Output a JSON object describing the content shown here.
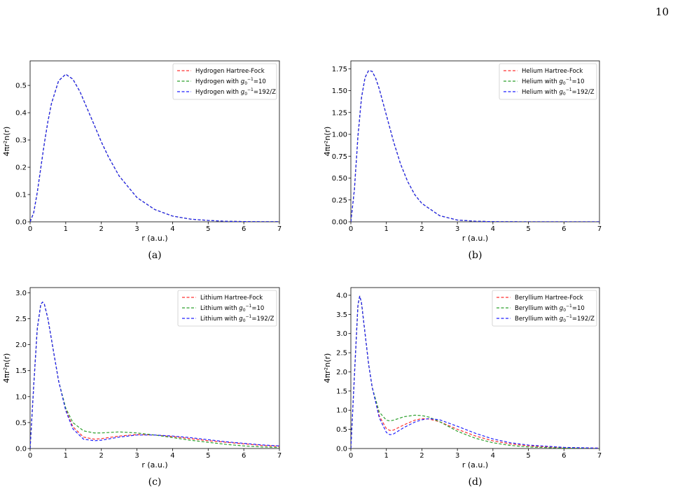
{
  "page": {
    "number": "10"
  },
  "colors": {
    "hf": "#ff3030",
    "g10": "#2ca02c",
    "g192": "#2020ff"
  },
  "chart_data": [
    {
      "type": "line",
      "caption": "(a)",
      "xlabel": "r (a.u.)",
      "ylabel": "4πr²n(r)",
      "xlim": [
        0,
        7
      ],
      "ylim": [
        0,
        0.59
      ],
      "xticks": [
        0,
        1,
        2,
        3,
        4,
        5,
        6,
        7
      ],
      "yticks": [
        0.0,
        0.1,
        0.2,
        0.3,
        0.4,
        0.5
      ],
      "ytick_labels": [
        "0.0",
        "0.1",
        "0.2",
        "0.3",
        "0.4",
        "0.5"
      ],
      "legend_position": "top-right",
      "x": [
        0,
        0.1,
        0.2,
        0.3,
        0.4,
        0.5,
        0.6,
        0.8,
        1.0,
        1.2,
        1.4,
        1.6,
        1.8,
        2.0,
        2.2,
        2.5,
        3.0,
        3.5,
        4.0,
        4.5,
        5.0,
        5.5,
        6.0,
        6.5,
        7.0
      ],
      "series": [
        {
          "name": "Hydrogen Hartree-Fock",
          "color_key": "hf",
          "values": [
            0,
            0.033,
            0.107,
            0.198,
            0.288,
            0.368,
            0.434,
            0.517,
            0.541,
            0.523,
            0.477,
            0.416,
            0.355,
            0.293,
            0.238,
            0.168,
            0.089,
            0.045,
            0.021,
            0.01,
            0.005,
            0.002,
            0.001,
            0.0005,
            0.0002
          ]
        },
        {
          "name": "Hydrogen with g0^-1=10",
          "color_key": "g10",
          "values": [
            0,
            0.033,
            0.107,
            0.198,
            0.288,
            0.368,
            0.434,
            0.517,
            0.541,
            0.523,
            0.477,
            0.416,
            0.355,
            0.293,
            0.238,
            0.168,
            0.089,
            0.045,
            0.021,
            0.01,
            0.005,
            0.002,
            0.001,
            0.0005,
            0.0002
          ]
        },
        {
          "name": "Hydrogen with g0^-1=192/Z",
          "color_key": "g192",
          "values": [
            0,
            0.033,
            0.107,
            0.198,
            0.288,
            0.368,
            0.434,
            0.517,
            0.541,
            0.523,
            0.477,
            0.416,
            0.355,
            0.293,
            0.238,
            0.168,
            0.089,
            0.045,
            0.021,
            0.01,
            0.005,
            0.002,
            0.001,
            0.0005,
            0.0002
          ]
        }
      ],
      "legend_entries": [
        {
          "prefix": "Hydrogen Hartree-Fock",
          "math": false
        },
        {
          "prefix": "Hydrogen with ",
          "value": "=10",
          "math": true
        },
        {
          "prefix": "Hydrogen with ",
          "value": "=192/Z",
          "math": true
        }
      ]
    },
    {
      "type": "line",
      "caption": "(b)",
      "xlabel": "r (a.u.)",
      "ylabel": "4πr²n(r)",
      "xlim": [
        0,
        7
      ],
      "ylim": [
        0,
        1.84
      ],
      "xticks": [
        0,
        1,
        2,
        3,
        4,
        5,
        6,
        7
      ],
      "yticks": [
        0.0,
        0.25,
        0.5,
        0.75,
        1.0,
        1.25,
        1.5,
        1.75
      ],
      "ytick_labels": [
        "0.00",
        "0.25",
        "0.50",
        "0.75",
        "1.00",
        "1.25",
        "1.50",
        "1.75"
      ],
      "legend_position": "top-right",
      "x": [
        0,
        0.1,
        0.2,
        0.3,
        0.4,
        0.5,
        0.6,
        0.7,
        0.8,
        1.0,
        1.2,
        1.4,
        1.6,
        1.8,
        2.0,
        2.5,
        3.0,
        3.5,
        4.0,
        5.0,
        6.0,
        7.0
      ],
      "series": [
        {
          "name": "Helium Hartree-Fock",
          "color_key": "hf",
          "values": [
            0,
            0.37,
            0.98,
            1.42,
            1.65,
            1.73,
            1.72,
            1.64,
            1.52,
            1.22,
            0.92,
            0.66,
            0.46,
            0.31,
            0.21,
            0.07,
            0.02,
            0.007,
            0.002,
            0.0002,
            0,
            0
          ]
        },
        {
          "name": "Helium with g0^-1=10",
          "color_key": "g10",
          "values": [
            0,
            0.37,
            0.98,
            1.42,
            1.65,
            1.73,
            1.72,
            1.64,
            1.52,
            1.22,
            0.92,
            0.66,
            0.46,
            0.31,
            0.21,
            0.07,
            0.02,
            0.007,
            0.002,
            0.0002,
            0,
            0
          ]
        },
        {
          "name": "Helium with g0^-1=192/Z",
          "color_key": "g192",
          "values": [
            0,
            0.37,
            0.98,
            1.42,
            1.65,
            1.73,
            1.72,
            1.64,
            1.52,
            1.22,
            0.92,
            0.66,
            0.46,
            0.31,
            0.21,
            0.07,
            0.02,
            0.007,
            0.002,
            0.0002,
            0,
            0
          ]
        }
      ],
      "legend_entries": [
        {
          "prefix": "Helium Hartree-Fock",
          "math": false
        },
        {
          "prefix": "Helium with ",
          "value": "=10",
          "math": true
        },
        {
          "prefix": "Helium with ",
          "value": "=192/Z",
          "math": true
        }
      ]
    },
    {
      "type": "line",
      "caption": "(c)",
      "xlabel": "r (a.u.)",
      "ylabel": "4πr²n(r)",
      "xlim": [
        0,
        7
      ],
      "ylim": [
        0,
        3.1
      ],
      "xticks": [
        0,
        1,
        2,
        3,
        4,
        5,
        6,
        7
      ],
      "yticks": [
        0.0,
        0.5,
        1.0,
        1.5,
        2.0,
        2.5,
        3.0
      ],
      "ytick_labels": [
        "0.0",
        "0.5",
        "1.0",
        "1.5",
        "2.0",
        "2.5",
        "3.0"
      ],
      "legend_position": "top-right",
      "x": [
        0,
        0.1,
        0.2,
        0.3,
        0.35,
        0.4,
        0.5,
        0.6,
        0.8,
        1.0,
        1.2,
        1.5,
        1.8,
        2.0,
        2.5,
        3.0,
        3.5,
        4.0,
        4.5,
        5.0,
        5.5,
        6.0,
        6.5,
        7.0
      ],
      "series": [
        {
          "name": "Lithium Hartree-Fock",
          "color_key": "hf",
          "values": [
            0,
            1.2,
            2.3,
            2.78,
            2.82,
            2.78,
            2.5,
            2.1,
            1.3,
            0.75,
            0.42,
            0.22,
            0.18,
            0.19,
            0.24,
            0.27,
            0.26,
            0.23,
            0.19,
            0.15,
            0.12,
            0.09,
            0.06,
            0.04
          ]
        },
        {
          "name": "Lithium with g0^-1=10",
          "color_key": "g10",
          "values": [
            0,
            1.2,
            2.3,
            2.78,
            2.82,
            2.78,
            2.5,
            2.1,
            1.3,
            0.78,
            0.5,
            0.34,
            0.3,
            0.3,
            0.32,
            0.3,
            0.26,
            0.21,
            0.16,
            0.12,
            0.08,
            0.05,
            0.03,
            0.02
          ]
        },
        {
          "name": "Lithium with g0^-1=192/Z",
          "color_key": "g192",
          "values": [
            0,
            1.2,
            2.3,
            2.78,
            2.82,
            2.78,
            2.5,
            2.1,
            1.3,
            0.73,
            0.38,
            0.18,
            0.15,
            0.16,
            0.22,
            0.26,
            0.26,
            0.24,
            0.21,
            0.17,
            0.13,
            0.1,
            0.07,
            0.05
          ]
        }
      ],
      "legend_entries": [
        {
          "prefix": "Lithium Hartree-Fock",
          "math": false
        },
        {
          "prefix": "Lithium with ",
          "value": "=10",
          "math": true
        },
        {
          "prefix": "Lithium with ",
          "value": "=192/Z",
          "math": true
        }
      ]
    },
    {
      "type": "line",
      "caption": "(d)",
      "xlabel": "r (a.u.)",
      "ylabel": "4πr²n(r)",
      "xlim": [
        0,
        7
      ],
      "ylim": [
        0,
        4.2
      ],
      "xticks": [
        0,
        1,
        2,
        3,
        4,
        5,
        6,
        7
      ],
      "yticks": [
        0.0,
        0.5,
        1.0,
        1.5,
        2.0,
        2.5,
        3.0,
        3.5,
        4.0
      ],
      "ytick_labels": [
        "0.0",
        "0.5",
        "1.0",
        "1.5",
        "2.0",
        "2.5",
        "3.0",
        "3.5",
        "4.0"
      ],
      "legend_position": "top-right",
      "x": [
        0,
        0.1,
        0.2,
        0.25,
        0.3,
        0.4,
        0.5,
        0.6,
        0.8,
        1.0,
        1.1,
        1.2,
        1.5,
        1.8,
        2.0,
        2.2,
        2.5,
        3.0,
        3.5,
        4.0,
        4.5,
        5.0,
        6.0,
        7.0
      ],
      "series": [
        {
          "name": "Beryllium Hartree-Fock",
          "color_key": "hf",
          "values": [
            0,
            1.9,
            3.75,
            3.98,
            3.8,
            3.0,
            2.2,
            1.6,
            0.85,
            0.52,
            0.47,
            0.48,
            0.62,
            0.74,
            0.78,
            0.77,
            0.7,
            0.5,
            0.33,
            0.2,
            0.12,
            0.07,
            0.02,
            0.01
          ]
        },
        {
          "name": "Beryllium with g0^-1=10",
          "color_key": "g10",
          "values": [
            0,
            1.9,
            3.75,
            3.98,
            3.8,
            3.0,
            2.2,
            1.6,
            0.95,
            0.74,
            0.72,
            0.74,
            0.83,
            0.87,
            0.86,
            0.82,
            0.7,
            0.45,
            0.27,
            0.15,
            0.08,
            0.04,
            0.01,
            0
          ]
        },
        {
          "name": "Beryllium with g0^-1=192/Z",
          "color_key": "g192",
          "values": [
            0,
            1.9,
            3.75,
            3.98,
            3.8,
            3.0,
            2.2,
            1.6,
            0.8,
            0.42,
            0.36,
            0.38,
            0.55,
            0.69,
            0.75,
            0.78,
            0.75,
            0.58,
            0.4,
            0.25,
            0.15,
            0.09,
            0.03,
            0.01
          ]
        }
      ],
      "legend_entries": [
        {
          "prefix": "Beryllium Hartree-Fock",
          "math": false
        },
        {
          "prefix": "Beryllium with ",
          "value": "=10",
          "math": true
        },
        {
          "prefix": "Beryllium with ",
          "value": "=192/Z",
          "math": true
        }
      ]
    }
  ]
}
